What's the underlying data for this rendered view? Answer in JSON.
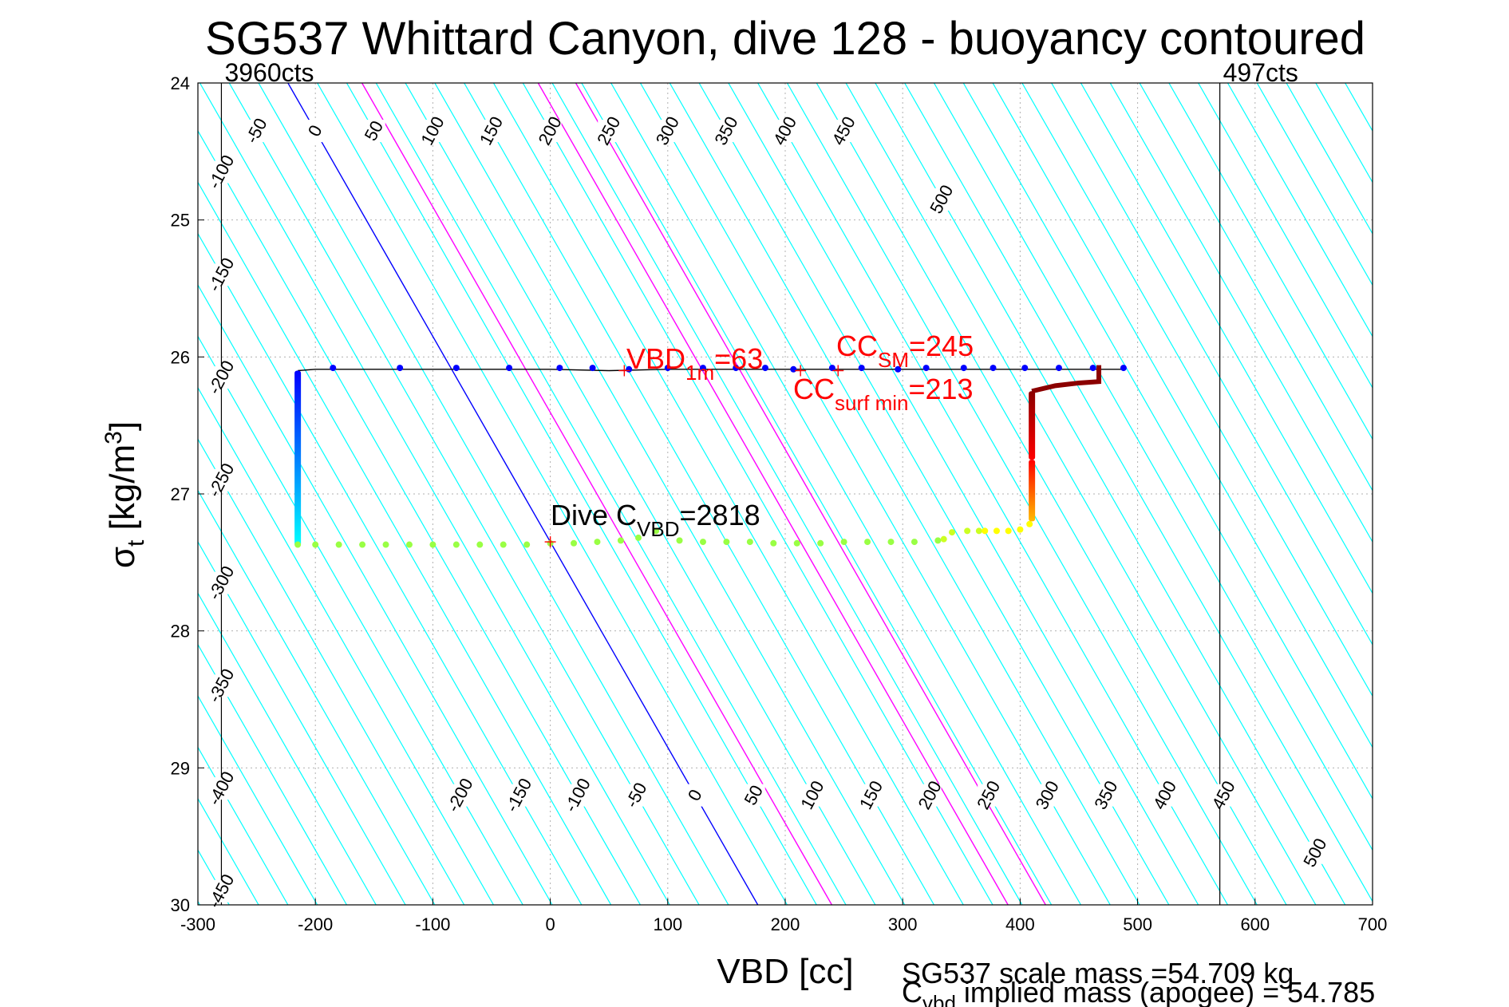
{
  "chart_data": {
    "type": "scatter",
    "title": "SG537 Whittard Canyon, dive 128 - buoyancy contoured",
    "xlabel": "VBD [cc]",
    "ylabel": {
      "base": "σ",
      "sub": "t",
      "text": " [kg/m",
      "sup": "3",
      "close": "]"
    },
    "xlim": [
      -300,
      700
    ],
    "ylim": [
      24,
      30
    ],
    "y_reversed": true,
    "grid": true,
    "xticks": [
      -300,
      -200,
      -100,
      0,
      100,
      200,
      300,
      400,
      500,
      600,
      700
    ],
    "yticks": [
      24,
      25,
      26,
      27,
      28,
      29,
      30
    ],
    "vbd_limits": [
      {
        "x": -280,
        "label": "3960cts"
      },
      {
        "x": 570,
        "label": "497cts"
      }
    ],
    "contour_levels": [
      -450,
      -400,
      -350,
      -300,
      -250,
      -200,
      -150,
      -100,
      -50,
      0,
      50,
      100,
      150,
      200,
      250,
      300,
      350,
      400,
      450,
      500
    ],
    "contour_top_labels": [
      -450,
      -400,
      -350,
      -300,
      -250,
      -200,
      -150,
      -100,
      -50,
      0,
      50,
      100,
      150,
      200,
      250,
      300,
      350,
      400,
      450,
      500
    ],
    "contour_bottom_labels": [
      -200,
      -150,
      -100,
      -50,
      0,
      50,
      100,
      150,
      200,
      250,
      300,
      350,
      400,
      450,
      500
    ],
    "colors": {
      "contour": "#00ffff",
      "zero_contour": "#0000ff",
      "highlight_contours": "#ff00ff",
      "annotation_red": "#ff0000",
      "grid": "#b0b0b0"
    },
    "highlight_contour_values": [
      63,
      213,
      245
    ],
    "annotations": [
      {
        "id": "vbd1m",
        "x": 63,
        "y": 26.1,
        "color": "#ff0000",
        "base": "VBD",
        "sub": "1m",
        "tail": "=63"
      },
      {
        "id": "ccsm",
        "x": 245,
        "y": 26.1,
        "color": "#ff0000",
        "base": "CC",
        "sub": "SM",
        "tail": "=245"
      },
      {
        "id": "ccsurf",
        "x": 213,
        "y": 26.1,
        "color": "#ff0000",
        "base": "CC",
        "sub": "surf min",
        "tail": "=213"
      },
      {
        "id": "cvbd",
        "x": 0,
        "y": 27.35,
        "color": "#000000",
        "base": "Dive C",
        "sub": "VBD",
        "tail": "=2818"
      }
    ],
    "series": [
      {
        "type": "line",
        "color": "#000000",
        "points": [
          [
            -215,
            26.1
          ],
          [
            -200,
            26.09
          ],
          [
            -150,
            26.09
          ],
          [
            -100,
            26.09
          ],
          [
            -50,
            26.09
          ],
          [
            0,
            26.09
          ],
          [
            50,
            26.1
          ],
          [
            100,
            26.09
          ],
          [
            150,
            26.09
          ],
          [
            200,
            26.09
          ],
          [
            250,
            26.09
          ],
          [
            300,
            26.09
          ],
          [
            350,
            26.09
          ],
          [
            400,
            26.09
          ],
          [
            450,
            26.09
          ],
          [
            488,
            26.09
          ]
        ]
      },
      {
        "type": "points",
        "color": "#0000ff",
        "points": [
          [
            -185,
            26.08
          ],
          [
            -128,
            26.08
          ],
          [
            -80,
            26.08
          ],
          [
            -35,
            26.08
          ],
          [
            8,
            26.08
          ],
          [
            36,
            26.08
          ],
          [
            67,
            26.09
          ],
          [
            100,
            26.08
          ],
          [
            130,
            26.08
          ],
          [
            158,
            26.08
          ],
          [
            183,
            26.08
          ],
          [
            207,
            26.09
          ],
          [
            240,
            26.08
          ],
          [
            265,
            26.08
          ],
          [
            296,
            26.09
          ],
          [
            320,
            26.08
          ],
          [
            352,
            26.08
          ],
          [
            377,
            26.08
          ],
          [
            404,
            26.08
          ],
          [
            433,
            26.08
          ],
          [
            462,
            26.08
          ],
          [
            488,
            26.08
          ]
        ]
      },
      {
        "type": "gradient-line",
        "color": "#0000ff",
        "color2": "#00ffff",
        "points": [
          [
            -215,
            26.1
          ],
          [
            -215,
            27.38
          ]
        ]
      },
      {
        "type": "dots",
        "color": "#99ff44",
        "points": [
          [
            -215,
            27.37
          ],
          [
            -200,
            27.37
          ],
          [
            -180,
            27.37
          ],
          [
            -160,
            27.37
          ],
          [
            -140,
            27.37
          ],
          [
            -120,
            27.37
          ],
          [
            -100,
            27.37
          ],
          [
            -80,
            27.37
          ],
          [
            -60,
            27.37
          ],
          [
            -40,
            27.37
          ],
          [
            -20,
            27.37
          ],
          [
            0,
            27.36
          ],
          [
            20,
            27.36
          ],
          [
            40,
            27.35
          ],
          [
            60,
            27.34
          ],
          [
            75,
            27.32
          ],
          [
            90,
            27.27
          ],
          [
            110,
            27.34
          ],
          [
            130,
            27.35
          ],
          [
            150,
            27.35
          ],
          [
            170,
            27.35
          ],
          [
            190,
            27.36
          ],
          [
            210,
            27.36
          ],
          [
            230,
            27.36
          ],
          [
            250,
            27.35
          ],
          [
            270,
            27.35
          ],
          [
            290,
            27.35
          ],
          [
            310,
            27.35
          ],
          [
            330,
            27.34
          ]
        ]
      },
      {
        "type": "dots",
        "color": "#ccff22",
        "points": [
          [
            335,
            27.33
          ],
          [
            342,
            27.28
          ],
          [
            355,
            27.27
          ],
          [
            365,
            27.27
          ]
        ]
      },
      {
        "type": "dots",
        "color": "#ffff00",
        "points": [
          [
            370,
            27.27
          ],
          [
            380,
            27.27
          ],
          [
            390,
            27.27
          ],
          [
            400,
            27.26
          ],
          [
            408,
            27.22
          ]
        ]
      },
      {
        "type": "gradient-line",
        "color": "#ff0000",
        "color2": "#ffbb00",
        "points": [
          [
            410,
            26.75
          ],
          [
            410,
            27.2
          ]
        ]
      },
      {
        "type": "gradient-line",
        "color": "#8b0000",
        "color2": "#ff0000",
        "points": [
          [
            410,
            26.25
          ],
          [
            410,
            26.75
          ]
        ]
      },
      {
        "type": "line",
        "color": "#8b0000",
        "thick": 6,
        "points": [
          [
            410,
            26.25
          ],
          [
            430,
            26.21
          ],
          [
            450,
            26.19
          ],
          [
            467,
            26.18
          ],
          [
            467,
            26.06
          ]
        ]
      }
    ]
  },
  "footer": {
    "line1": "SG537 scale mass =54.709 kg",
    "line2_base": "C",
    "line2_sub": "vbd",
    "line2_text": " implied mass (apogee) = 54.785"
  }
}
